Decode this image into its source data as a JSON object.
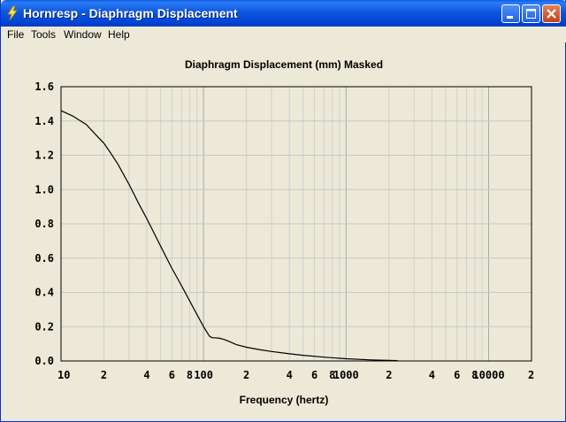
{
  "window": {
    "title": "Hornresp - Diaphragm Displacement",
    "icon": "lightning-icon"
  },
  "menu": [
    "File",
    "Tools",
    "Window",
    "Help"
  ],
  "chart_data": {
    "type": "line",
    "title": "Diaphragm Displacement (mm)   Masked",
    "xlabel": "Frequency (hertz)",
    "ylabel": "",
    "xscale": "log",
    "xlim": [
      10,
      20000
    ],
    "ylim": [
      0,
      1.6
    ],
    "y_ticks": [
      "1.6",
      "1.4",
      "1.2",
      "1.0",
      "0.8",
      "0.6",
      "0.4",
      "0.2",
      "0.0"
    ],
    "x_ticks": [
      {
        "value": 10,
        "label": "10"
      },
      {
        "value": 20,
        "label": "2"
      },
      {
        "value": 40,
        "label": "4"
      },
      {
        "value": 60,
        "label": "6"
      },
      {
        "value": 80,
        "label": "8"
      },
      {
        "value": 100,
        "label": "100"
      },
      {
        "value": 200,
        "label": "2"
      },
      {
        "value": 400,
        "label": "4"
      },
      {
        "value": 600,
        "label": "6"
      },
      {
        "value": 800,
        "label": "8"
      },
      {
        "value": 1000,
        "label": "1000"
      },
      {
        "value": 2000,
        "label": "2"
      },
      {
        "value": 4000,
        "label": "4"
      },
      {
        "value": 6000,
        "label": "6"
      },
      {
        "value": 8000,
        "label": "8"
      },
      {
        "value": 10000,
        "label": "10000"
      },
      {
        "value": 20000,
        "label": "2"
      }
    ],
    "grid": true,
    "series": [
      {
        "color": "#000000",
        "x": [
          10,
          12,
          15,
          18,
          20,
          22,
          25,
          30,
          35,
          40,
          50,
          60,
          70,
          80,
          90,
          100,
          110,
          115,
          120,
          130,
          140,
          150,
          170,
          200,
          250,
          300,
          400,
          500,
          700,
          1000,
          1500,
          2000,
          2300
        ],
        "y": [
          1.46,
          1.43,
          1.38,
          1.31,
          1.27,
          1.22,
          1.15,
          1.03,
          0.92,
          0.83,
          0.67,
          0.54,
          0.44,
          0.35,
          0.27,
          0.2,
          0.145,
          0.135,
          0.135,
          0.132,
          0.125,
          0.115,
          0.095,
          0.08,
          0.065,
          0.055,
          0.042,
          0.033,
          0.022,
          0.013,
          0.006,
          0.003,
          0.002
        ]
      }
    ]
  }
}
